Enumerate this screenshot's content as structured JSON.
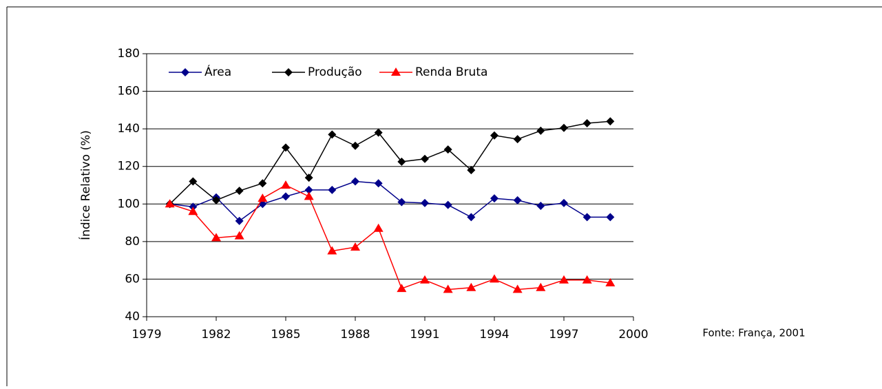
{
  "chart_data": {
    "type": "line",
    "y_label": "Índice Relativo (%)",
    "source": "Fonte: França, 2001",
    "x": [
      1980,
      1981,
      1982,
      1983,
      1984,
      1985,
      1986,
      1987,
      1988,
      1989,
      1990,
      1991,
      1992,
      1993,
      1994,
      1995,
      1996,
      1997,
      1998,
      1999
    ],
    "series": [
      {
        "name": "Área",
        "color": "#00008b",
        "marker": "diamond",
        "values": [
          100,
          98.5,
          103.5,
          91,
          100,
          104,
          107.5,
          107.5,
          112,
          111,
          101,
          100.5,
          99.5,
          93,
          103,
          102,
          99,
          100.5,
          93,
          93
        ]
      },
      {
        "name": "Produção",
        "color": "#000000",
        "marker": "diamond",
        "values": [
          100,
          112,
          102,
          107,
          111,
          130,
          114,
          137,
          131,
          138,
          122.5,
          124,
          129,
          118,
          136.5,
          134.5,
          139,
          140.5,
          143,
          144
        ]
      },
      {
        "name": "Renda Bruta",
        "color": "#ff0000",
        "marker": "triangle",
        "values": [
          100,
          96,
          82,
          83,
          103,
          110,
          104,
          75,
          77,
          87,
          55,
          59.5,
          54.5,
          55.5,
          60,
          54.5,
          55.5,
          59.5,
          59.5,
          58
        ]
      }
    ],
    "xlim": [
      1979,
      2000
    ],
    "xticks": [
      1979,
      1982,
      1985,
      1988,
      1991,
      1994,
      1997,
      2000
    ],
    "ylim": [
      40,
      180
    ],
    "yticks": [
      40,
      60,
      80,
      100,
      120,
      140,
      160,
      180
    ],
    "grid": true,
    "legend": "top-left"
  }
}
